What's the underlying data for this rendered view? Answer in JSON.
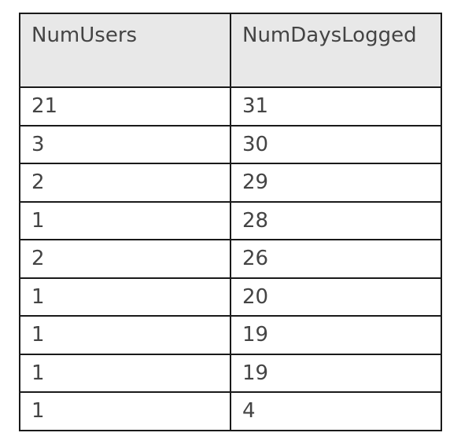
{
  "table": {
    "columns": [
      "NumUsers",
      "NumDaysLogged"
    ],
    "rows": [
      [
        "21",
        "31"
      ],
      [
        "3",
        "30"
      ],
      [
        "2",
        "29"
      ],
      [
        "1",
        "28"
      ],
      [
        "2",
        "26"
      ],
      [
        "1",
        "20"
      ],
      [
        "1",
        "19"
      ],
      [
        "1",
        "19"
      ],
      [
        "1",
        "4"
      ]
    ]
  }
}
